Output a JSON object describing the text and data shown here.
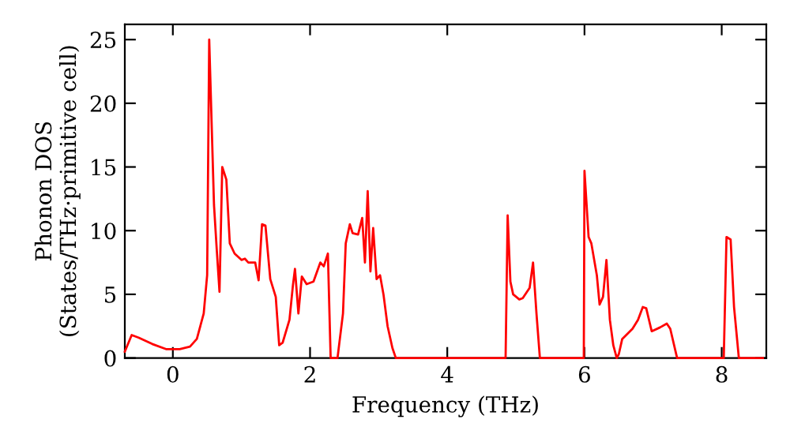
{
  "chart_data": {
    "type": "line",
    "xlabel": "Frequency (THz)",
    "ylabel": "Phonon DOS\n(States/THz·primitive cell)",
    "xlim": [
      -0.7,
      8.65
    ],
    "ylim": [
      0,
      26.2
    ],
    "xticks": [
      0,
      2,
      4,
      6,
      8
    ],
    "yticks": [
      0,
      5,
      10,
      15,
      20,
      25
    ],
    "grid": false,
    "legend": false,
    "marker": "none",
    "line_style": "solid",
    "series": [
      {
        "color": "#ff0000",
        "x": [
          -0.7,
          -0.6,
          -0.5,
          -0.3,
          -0.1,
          0.1,
          0.25,
          0.35,
          0.45,
          0.5,
          0.53,
          0.6,
          0.64,
          0.68,
          0.72,
          0.78,
          0.83,
          0.9,
          1.0,
          1.05,
          1.1,
          1.2,
          1.25,
          1.3,
          1.35,
          1.42,
          1.5,
          1.55,
          1.6,
          1.7,
          1.75,
          1.78,
          1.83,
          1.88,
          1.95,
          2.05,
          2.15,
          2.2,
          2.26,
          2.3,
          2.4,
          2.48,
          2.52,
          2.58,
          2.62,
          2.7,
          2.76,
          2.8,
          2.84,
          2.88,
          2.92,
          2.97,
          3.02,
          3.07,
          3.13,
          3.2,
          3.25,
          4.85,
          4.88,
          4.92,
          4.96,
          5.05,
          5.1,
          5.2,
          5.25,
          5.3,
          5.35,
          5.99,
          6.0,
          6.06,
          6.1,
          6.18,
          6.22,
          6.27,
          6.32,
          6.37,
          6.42,
          6.47,
          6.5,
          6.55,
          6.7,
          6.78,
          6.85,
          6.9,
          6.98,
          7.1,
          7.2,
          7.25,
          7.35,
          8.03,
          8.07,
          8.13,
          8.18,
          8.25,
          8.6
        ],
        "values": [
          0.5,
          1.8,
          1.6,
          1.1,
          0.7,
          0.7,
          0.9,
          1.5,
          3.5,
          6.5,
          25.0,
          12,
          8.5,
          5.2,
          15.0,
          14.0,
          9,
          8.2,
          7.7,
          7.8,
          7.5,
          7.5,
          6.1,
          10.5,
          10.4,
          6.2,
          4.8,
          1.0,
          1.2,
          3.0,
          5.7,
          7.0,
          3.5,
          6.4,
          5.8,
          6.0,
          7.5,
          7.2,
          8.2,
          0,
          0,
          3.5,
          9,
          10.5,
          9.8,
          9.7,
          11.0,
          7.5,
          13.1,
          6.8,
          10.2,
          6.2,
          6.5,
          5.0,
          2.5,
          0.8,
          0,
          0,
          11.2,
          6.0,
          5.0,
          4.6,
          4.7,
          5.5,
          7.5,
          3.5,
          0,
          0,
          14.7,
          9.5,
          9.0,
          6.5,
          4.2,
          4.8,
          7.7,
          3.0,
          1.0,
          0,
          0.3,
          1.5,
          2.3,
          3.0,
          4.0,
          3.9,
          2.1,
          2.4,
          2.7,
          2.3,
          0,
          0,
          9.5,
          9.3,
          4,
          0,
          0
        ]
      }
    ]
  }
}
